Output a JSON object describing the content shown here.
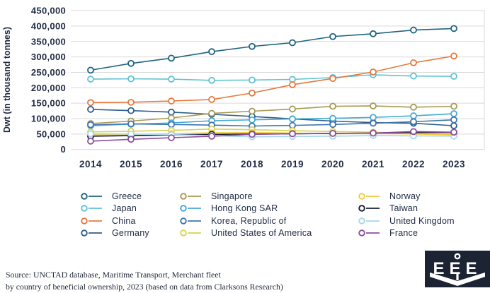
{
  "chart_data": {
    "type": "line",
    "title": "",
    "xlabel": "",
    "ylabel": "Dwt (in thousand tonnes)",
    "ylim": [
      0,
      450000
    ],
    "ytick_step": 50000,
    "grid": true,
    "legend_position": "bottom",
    "categories": [
      "2014",
      "2015",
      "2016",
      "2017",
      "2018",
      "2019",
      "2020",
      "2021",
      "2022",
      "2023"
    ],
    "series": [
      {
        "name": "Greece",
        "color": "#1f6480",
        "values": [
          257000,
          279000,
          296000,
          317000,
          334000,
          346000,
          366000,
          375000,
          387000,
          392000
        ]
      },
      {
        "name": "Japan",
        "color": "#5ec3d5",
        "values": [
          228000,
          229000,
          228000,
          224000,
          225000,
          227000,
          233000,
          242000,
          238000,
          237000
        ]
      },
      {
        "name": "China",
        "color": "#e5793e",
        "values": [
          152000,
          153000,
          157000,
          162000,
          183000,
          210000,
          230000,
          251000,
          281000,
          303000
        ]
      },
      {
        "name": "Germany",
        "color": "#2e5e8c",
        "values": [
          130000,
          126000,
          121000,
          114000,
          107000,
          99000,
          92000,
          87000,
          85000,
          77000
        ]
      },
      {
        "name": "Singapore",
        "color": "#a79a55",
        "values": [
          84000,
          92000,
          102000,
          117000,
          124000,
          131000,
          140000,
          141000,
          137000,
          140000
        ]
      },
      {
        "name": "Hong Kong SAR",
        "color": "#45aad3",
        "values": [
          77000,
          82000,
          86000,
          93000,
          96000,
          99000,
          101000,
          104000,
          109000,
          116000
        ]
      },
      {
        "name": "Korea, Republic of",
        "color": "#3f74ae",
        "values": [
          80000,
          83000,
          81000,
          79000,
          76000,
          78000,
          81000,
          85000,
          90000,
          96000
        ]
      },
      {
        "name": "United States of America",
        "color": "#d8d352",
        "values": [
          57000,
          59000,
          62000,
          66000,
          64000,
          61000,
          58000,
          56000,
          52000,
          48000
        ]
      },
      {
        "name": "Norway",
        "color": "#f3cc3f",
        "values": [
          47000,
          49000,
          51000,
          54000,
          55000,
          53000,
          51000,
          52000,
          50000,
          47000
        ]
      },
      {
        "name": "Taiwan",
        "color": "#1a1f33",
        "values": [
          43000,
          45000,
          47000,
          49000,
          50000,
          51000,
          52000,
          53000,
          55000,
          55000
        ]
      },
      {
        "name": "United Kingdom",
        "color": "#a9d6ec",
        "values": [
          51000,
          50000,
          48000,
          45000,
          41000,
          42000,
          43000,
          45000,
          44000,
          43000
        ]
      },
      {
        "name": "France",
        "color": "#8f4d9f",
        "values": [
          27000,
          33000,
          38000,
          43000,
          49000,
          51000,
          52000,
          53000,
          58000,
          56000
        ]
      }
    ],
    "legend_columns": [
      [
        0,
        1,
        2,
        3
      ],
      [
        4,
        5,
        6,
        7
      ],
      [
        8,
        9,
        10,
        11
      ]
    ],
    "axis_color": "#1f2a44",
    "grid_color": "#d9d9d9"
  },
  "footer": {
    "source_line1": "Source: UNCTAD database, Maritime Transport, Merchant fleet",
    "source_line2": "by country of beneficial ownership, 2023 (based on data from Clarksons Research)"
  },
  "logo": {
    "text": "EEE",
    "bg": "#1c2434"
  }
}
